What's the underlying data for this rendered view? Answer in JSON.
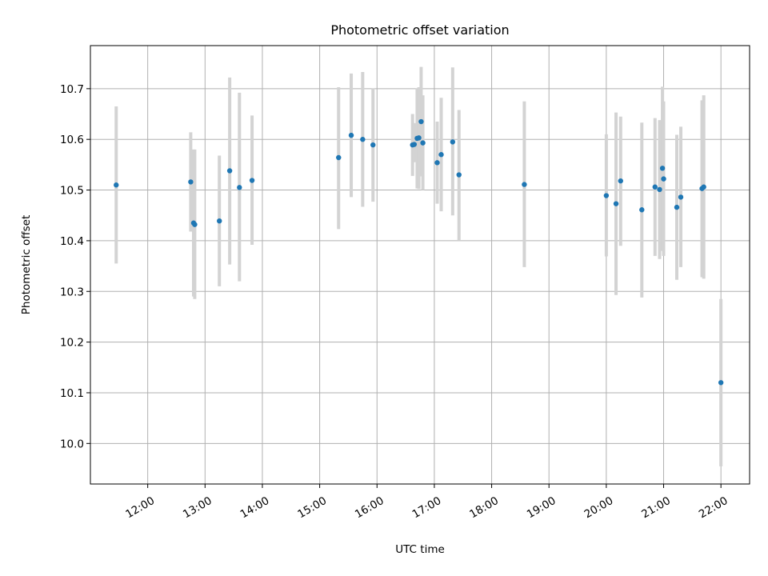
{
  "chart_data": {
    "type": "scatter",
    "title": "Photometric offset variation",
    "xlabel": "UTC time",
    "ylabel": "Photometric offset",
    "x_unit": "UTC hours",
    "xlim": [
      11.0,
      22.5
    ],
    "ylim": [
      9.92,
      10.785
    ],
    "xticks": [
      12,
      13,
      14,
      15,
      16,
      17,
      18,
      19,
      20,
      21,
      22
    ],
    "xtick_labels": [
      "12:00",
      "13:00",
      "14:00",
      "15:00",
      "16:00",
      "17:00",
      "18:00",
      "19:00",
      "20:00",
      "21:00",
      "22:00"
    ],
    "yticks": [
      10.0,
      10.1,
      10.2,
      10.3,
      10.4,
      10.5,
      10.6,
      10.7
    ],
    "ytick_labels": [
      "10.0",
      "10.1",
      "10.2",
      "10.3",
      "10.4",
      "10.5",
      "10.6",
      "10.7"
    ],
    "grid": true,
    "point_color": "#1f77b4",
    "errorbar_color": "#d3d3d3",
    "points": [
      {
        "x": 11.45,
        "y": 10.51,
        "lo": 10.355,
        "hi": 10.665
      },
      {
        "x": 12.75,
        "y": 10.516,
        "lo": 10.418,
        "hi": 10.614
      },
      {
        "x": 12.8,
        "y": 10.435,
        "lo": 10.29,
        "hi": 10.58
      },
      {
        "x": 12.82,
        "y": 10.432,
        "lo": 10.285,
        "hi": 10.58
      },
      {
        "x": 13.25,
        "y": 10.439,
        "lo": 10.31,
        "hi": 10.568
      },
      {
        "x": 13.43,
        "y": 10.538,
        "lo": 10.353,
        "hi": 10.722
      },
      {
        "x": 13.6,
        "y": 10.505,
        "lo": 10.32,
        "hi": 10.692
      },
      {
        "x": 13.82,
        "y": 10.519,
        "lo": 10.392,
        "hi": 10.647
      },
      {
        "x": 15.33,
        "y": 10.564,
        "lo": 10.423,
        "hi": 10.703
      },
      {
        "x": 15.55,
        "y": 10.608,
        "lo": 10.486,
        "hi": 10.73
      },
      {
        "x": 15.75,
        "y": 10.6,
        "lo": 10.467,
        "hi": 10.733
      },
      {
        "x": 15.93,
        "y": 10.589,
        "lo": 10.477,
        "hi": 10.701
      },
      {
        "x": 16.62,
        "y": 10.589,
        "lo": 10.528,
        "hi": 10.65
      },
      {
        "x": 16.65,
        "y": 10.59,
        "lo": 10.555,
        "hi": 10.632
      },
      {
        "x": 16.7,
        "y": 10.602,
        "lo": 10.503,
        "hi": 10.701
      },
      {
        "x": 16.73,
        "y": 10.603,
        "lo": 10.502,
        "hi": 10.703
      },
      {
        "x": 16.77,
        "y": 10.635,
        "lo": 10.527,
        "hi": 10.743
      },
      {
        "x": 16.8,
        "y": 10.593,
        "lo": 10.5,
        "hi": 10.687
      },
      {
        "x": 17.05,
        "y": 10.554,
        "lo": 10.473,
        "hi": 10.635
      },
      {
        "x": 17.12,
        "y": 10.57,
        "lo": 10.458,
        "hi": 10.682
      },
      {
        "x": 17.32,
        "y": 10.595,
        "lo": 10.45,
        "hi": 10.742
      },
      {
        "x": 17.43,
        "y": 10.53,
        "lo": 10.4,
        "hi": 10.658
      },
      {
        "x": 18.57,
        "y": 10.511,
        "lo": 10.348,
        "hi": 10.675
      },
      {
        "x": 20.0,
        "y": 10.489,
        "lo": 10.369,
        "hi": 10.61
      },
      {
        "x": 20.17,
        "y": 10.473,
        "lo": 10.293,
        "hi": 10.653
      },
      {
        "x": 20.25,
        "y": 10.518,
        "lo": 10.39,
        "hi": 10.645
      },
      {
        "x": 20.62,
        "y": 10.461,
        "lo": 10.288,
        "hi": 10.633
      },
      {
        "x": 20.85,
        "y": 10.506,
        "lo": 10.37,
        "hi": 10.642
      },
      {
        "x": 20.93,
        "y": 10.501,
        "lo": 10.364,
        "hi": 10.638
      },
      {
        "x": 20.98,
        "y": 10.543,
        "lo": 10.38,
        "hi": 10.704
      },
      {
        "x": 21.0,
        "y": 10.522,
        "lo": 10.37,
        "hi": 10.675
      },
      {
        "x": 21.23,
        "y": 10.466,
        "lo": 10.323,
        "hi": 10.609
      },
      {
        "x": 21.3,
        "y": 10.486,
        "lo": 10.348,
        "hi": 10.625
      },
      {
        "x": 21.67,
        "y": 10.503,
        "lo": 10.328,
        "hi": 10.677
      },
      {
        "x": 21.7,
        "y": 10.506,
        "lo": 10.325,
        "hi": 10.687
      },
      {
        "x": 22.0,
        "y": 10.12,
        "lo": 9.955,
        "hi": 10.285
      }
    ]
  }
}
